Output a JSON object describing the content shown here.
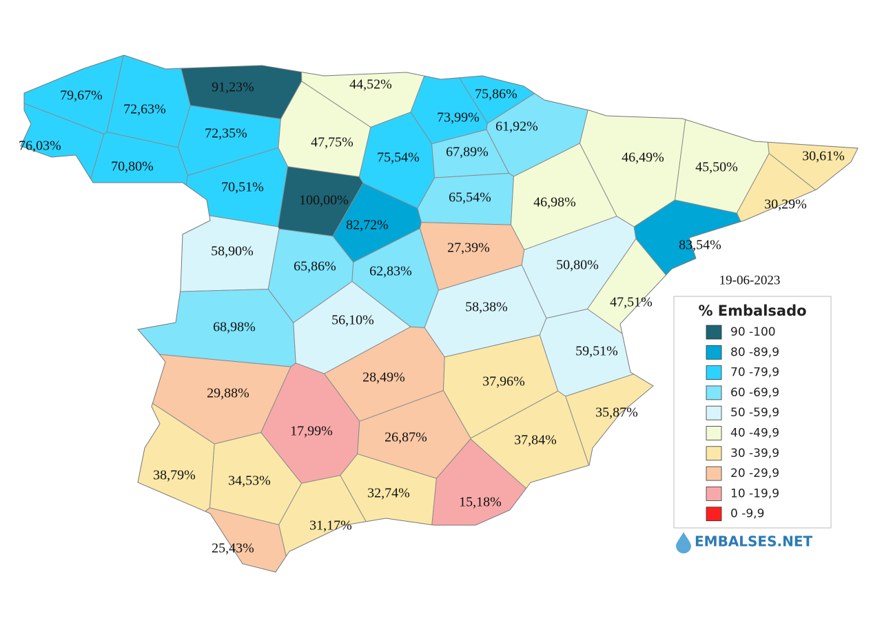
{
  "date": "19-06-2023",
  "legend": {
    "title": "% Embalsado",
    "items": [
      {
        "label": "90 -100",
        "color": "#1e6474"
      },
      {
        "label": "80 -89,9",
        "color": "#00a6d6"
      },
      {
        "label": "70 -79,9",
        "color": "#2dd3ff"
      },
      {
        "label": "60 -69,9",
        "color": "#80e4fb"
      },
      {
        "label": "50 -59,9",
        "color": "#d8f5fc"
      },
      {
        "label": "40 -49,9",
        "color": "#f3fbd6"
      },
      {
        "label": "30 -39,9",
        "color": "#fbe8a8"
      },
      {
        "label": "20 -29,9",
        "color": "#fac8a5"
      },
      {
        "label": "10 -19,9",
        "color": "#f7a9a9"
      },
      {
        "label": "0 -9,9",
        "color": "#ff1f1f"
      }
    ]
  },
  "regions": [
    {
      "label": "79,67%",
      "color": "#2dd3ff"
    },
    {
      "label": "72,63%",
      "color": "#2dd3ff"
    },
    {
      "label": "91,23%",
      "color": "#1e6474"
    },
    {
      "label": "44,52%",
      "color": "#f3fbd6"
    },
    {
      "label": "75,86%",
      "color": "#2dd3ff"
    },
    {
      "label": "76,03%",
      "color": "#2dd3ff"
    },
    {
      "label": "72,35%",
      "color": "#2dd3ff"
    },
    {
      "label": "47,75%",
      "color": "#f3fbd6"
    },
    {
      "label": "73,99%",
      "color": "#2dd3ff"
    },
    {
      "label": "61,92%",
      "color": "#80e4fb"
    },
    {
      "label": "70,80%",
      "color": "#2dd3ff"
    },
    {
      "label": "75,54%",
      "color": "#2dd3ff"
    },
    {
      "label": "67,89%",
      "color": "#80e4fb"
    },
    {
      "label": "46,49%",
      "color": "#f3fbd6"
    },
    {
      "label": "45,50%",
      "color": "#f3fbd6"
    },
    {
      "label": "30,61%",
      "color": "#fbe8a8"
    },
    {
      "label": "70,51%",
      "color": "#2dd3ff"
    },
    {
      "label": "100,00%",
      "color": "#1e6474"
    },
    {
      "label": "65,54%",
      "color": "#80e4fb"
    },
    {
      "label": "46,98%",
      "color": "#f3fbd6"
    },
    {
      "label": "30,29%",
      "color": "#fbe8a8"
    },
    {
      "label": "82,72%",
      "color": "#00a6d6"
    },
    {
      "label": "83,54%",
      "color": "#00a6d6"
    },
    {
      "label": "58,90%",
      "color": "#d8f5fc"
    },
    {
      "label": "65,86%",
      "color": "#80e4fb"
    },
    {
      "label": "62,83%",
      "color": "#80e4fb"
    },
    {
      "label": "27,39%",
      "color": "#fac8a5"
    },
    {
      "label": "50,80%",
      "color": "#d8f5fc"
    },
    {
      "label": "47,51%",
      "color": "#f3fbd6"
    },
    {
      "label": "68,98%",
      "color": "#80e4fb"
    },
    {
      "label": "56,10%",
      "color": "#d8f5fc"
    },
    {
      "label": "58,38%",
      "color": "#d8f5fc"
    },
    {
      "label": "59,51%",
      "color": "#d8f5fc"
    },
    {
      "label": "29,88%",
      "color": "#fac8a5"
    },
    {
      "label": "28,49%",
      "color": "#fac8a5"
    },
    {
      "label": "37,96%",
      "color": "#fbe8a8"
    },
    {
      "label": "35,87%",
      "color": "#fbe8a8"
    },
    {
      "label": "17,99%",
      "color": "#f7a9a9"
    },
    {
      "label": "26,87%",
      "color": "#fac8a5"
    },
    {
      "label": "37,84%",
      "color": "#fbe8a8"
    },
    {
      "label": "38,79%",
      "color": "#fbe8a8"
    },
    {
      "label": "34,53%",
      "color": "#fbe8a8"
    },
    {
      "label": "32,74%",
      "color": "#fbe8a8"
    },
    {
      "label": "15,18%",
      "color": "#f7a9a9"
    },
    {
      "label": "31,17%",
      "color": "#fbe8a8"
    },
    {
      "label": "25,43%",
      "color": "#fac8a5"
    }
  ],
  "brand": "EMBALSES.NET"
}
